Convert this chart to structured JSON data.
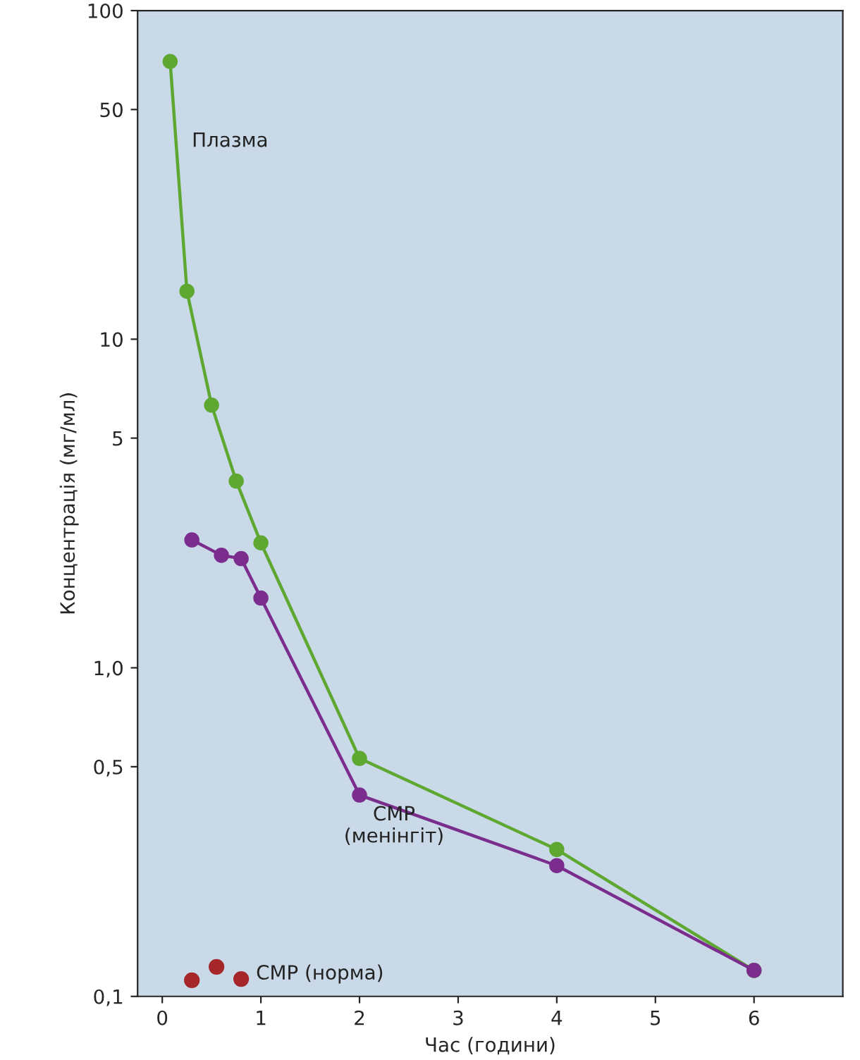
{
  "chart_data": {
    "type": "line",
    "xlabel": "Час (години)",
    "ylabel": "Концентрація (мг/мл)",
    "log": "y",
    "grid": false,
    "legend": false,
    "marker": "circle",
    "line_style": "solid",
    "xlim": [
      -0.25,
      6.9
    ],
    "xticks": [
      0,
      1,
      2,
      3,
      4,
      5,
      6
    ],
    "ylim": [
      0.1,
      100
    ],
    "yticks": [
      {
        "value": 0.1,
        "label": "0,1"
      },
      {
        "value": 0.5,
        "label": "0,5"
      },
      {
        "value": 1,
        "label": "1,0"
      },
      5,
      10,
      50,
      100
    ],
    "series": [
      {
        "name": "Плазма",
        "color": "#5ea832",
        "x": [
          0.08,
          0.25,
          0.5,
          0.75,
          1.0,
          2.0,
          4.0,
          6.0
        ],
        "values": [
          70,
          14,
          6.3,
          3.7,
          2.4,
          0.53,
          0.28,
          0.12
        ]
      },
      {
        "name": "СМР\n(менінгіт)",
        "color": "#7b2d8e",
        "x": [
          0.3,
          0.6,
          0.8,
          1.0,
          2.0,
          4.0,
          6.0
        ],
        "values": [
          2.45,
          2.2,
          2.15,
          1.63,
          0.41,
          0.25,
          0.12
        ]
      },
      {
        "name": "СМР (норма)",
        "color": "#a5272a",
        "type": "scatter",
        "x": [
          0.3,
          0.55,
          0.8
        ],
        "values": [
          0.112,
          0.123,
          0.113
        ]
      }
    ]
  }
}
